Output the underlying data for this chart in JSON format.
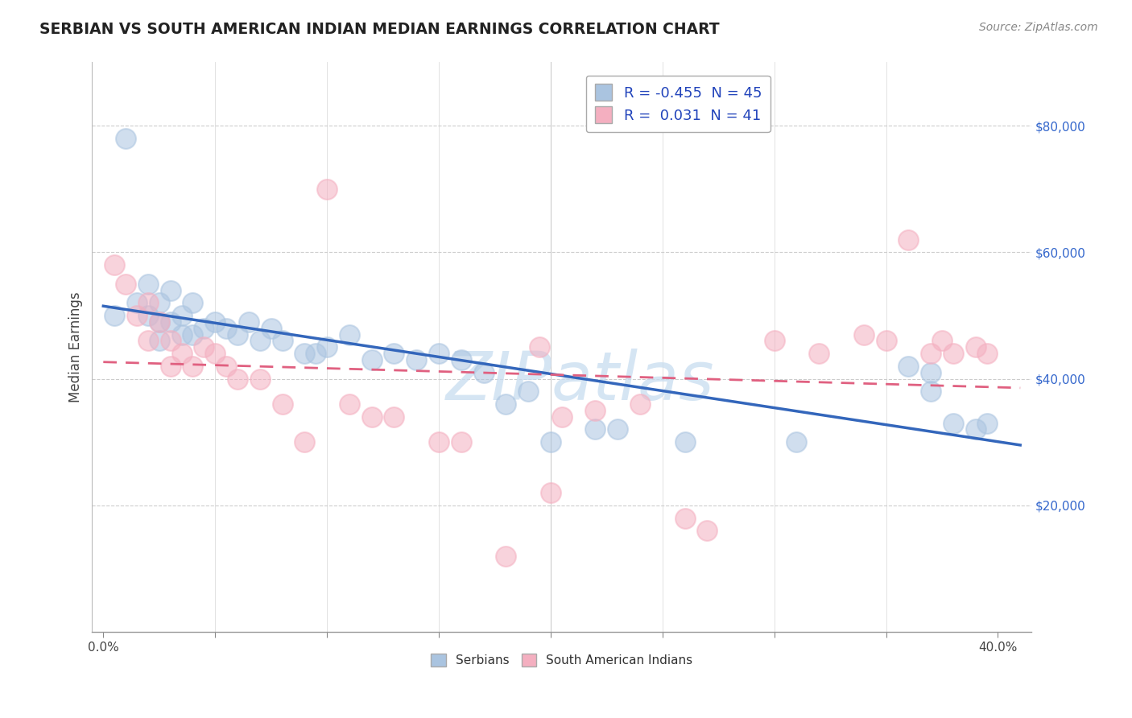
{
  "title": "SERBIAN VS SOUTH AMERICAN INDIAN MEDIAN EARNINGS CORRELATION CHART",
  "source": "Source: ZipAtlas.com",
  "ylabel": "Median Earnings",
  "xlim": [
    -0.005,
    0.415
  ],
  "ylim": [
    0,
    90000
  ],
  "ytick_vals": [
    0,
    20000,
    40000,
    60000,
    80000
  ],
  "ytick_labels": [
    "",
    "$20,000",
    "$40,000",
    "$60,000",
    "$80,000"
  ],
  "legend_R1": "-0.455",
  "legend_N1": "45",
  "legend_R2": "0.031",
  "legend_N2": "41",
  "blue_color": "#aac4e0",
  "pink_color": "#f4afc0",
  "trend_blue": "#3366bb",
  "trend_pink": "#e06080",
  "watermark": "ZIPatlas",
  "watermark_color": "#c8ddf0",
  "background": "#ffffff",
  "grid_color": "#cccccc",
  "blue_x": [
    0.005,
    0.01,
    0.015,
    0.02,
    0.02,
    0.025,
    0.025,
    0.025,
    0.03,
    0.03,
    0.035,
    0.035,
    0.04,
    0.04,
    0.045,
    0.05,
    0.055,
    0.06,
    0.065,
    0.07,
    0.075,
    0.08,
    0.09,
    0.095,
    0.1,
    0.11,
    0.12,
    0.13,
    0.14,
    0.15,
    0.16,
    0.17,
    0.18,
    0.19,
    0.2,
    0.22,
    0.23,
    0.26,
    0.31,
    0.36,
    0.37,
    0.37,
    0.38,
    0.39,
    0.395
  ],
  "blue_y": [
    50000,
    78000,
    52000,
    55000,
    50000,
    52000,
    49000,
    46000,
    54000,
    49000,
    50000,
    47000,
    52000,
    47000,
    48000,
    49000,
    48000,
    47000,
    49000,
    46000,
    48000,
    46000,
    44000,
    44000,
    45000,
    47000,
    43000,
    44000,
    43000,
    44000,
    43000,
    41000,
    36000,
    38000,
    30000,
    32000,
    32000,
    30000,
    30000,
    42000,
    41000,
    38000,
    33000,
    32000,
    33000
  ],
  "pink_x": [
    0.005,
    0.01,
    0.015,
    0.02,
    0.02,
    0.025,
    0.03,
    0.03,
    0.035,
    0.04,
    0.045,
    0.05,
    0.055,
    0.06,
    0.07,
    0.08,
    0.09,
    0.1,
    0.11,
    0.12,
    0.13,
    0.15,
    0.16,
    0.18,
    0.195,
    0.2,
    0.205,
    0.22,
    0.24,
    0.26,
    0.27,
    0.3,
    0.32,
    0.34,
    0.35,
    0.36,
    0.37,
    0.375,
    0.38,
    0.39,
    0.395
  ],
  "pink_y": [
    58000,
    55000,
    50000,
    52000,
    46000,
    49000,
    46000,
    42000,
    44000,
    42000,
    45000,
    44000,
    42000,
    40000,
    40000,
    36000,
    30000,
    70000,
    36000,
    34000,
    34000,
    30000,
    30000,
    12000,
    45000,
    22000,
    34000,
    35000,
    36000,
    18000,
    16000,
    46000,
    44000,
    47000,
    46000,
    62000,
    44000,
    46000,
    44000,
    45000,
    44000
  ]
}
